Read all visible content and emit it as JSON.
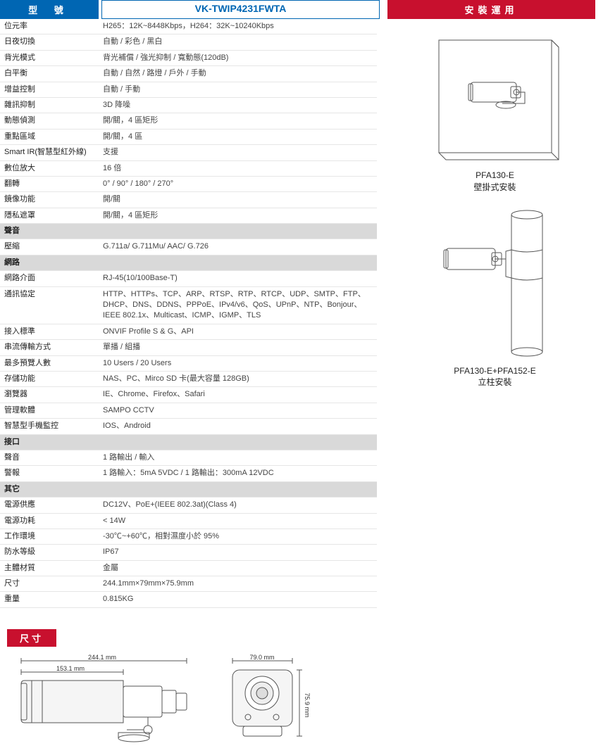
{
  "header": {
    "model_label": "型 號",
    "model_value": "VK-TWIP4231FWTA",
    "install_label": "安裝運用"
  },
  "rows": [
    {
      "type": "kv",
      "k": "位元率",
      "v": "H265：12K~8448Kbps，H264：32K~10240Kbps"
    },
    {
      "type": "kv",
      "k": "日夜切換",
      "v": "自動 / 彩色 / 黑白"
    },
    {
      "type": "kv",
      "k": "背光模式",
      "v": "背光補償 / 強光抑制 / 寬動態(120dB)"
    },
    {
      "type": "kv",
      "k": "白平衡",
      "v": "自動 / 自然 / 路燈 / 戶外 / 手動"
    },
    {
      "type": "kv",
      "k": "增益控制",
      "v": "自動 / 手動"
    },
    {
      "type": "kv",
      "k": "雜訊抑制",
      "v": "3D 降噪"
    },
    {
      "type": "kv",
      "k": "動態偵測",
      "v": "開/關，4 區矩形"
    },
    {
      "type": "kv",
      "k": "重點區域",
      "v": "開/關，4 區"
    },
    {
      "type": "kv",
      "k": "Smart IR(智慧型紅外線)",
      "v": "支援"
    },
    {
      "type": "kv",
      "k": "數位放大",
      "v": "16 倍"
    },
    {
      "type": "kv",
      "k": "翻轉",
      "v": "0° / 90° / 180° / 270°"
    },
    {
      "type": "kv",
      "k": "鏡像功能",
      "v": "開/關"
    },
    {
      "type": "kv",
      "k": "隱私遮罩",
      "v": "開/關，4 區矩形"
    },
    {
      "type": "section",
      "k": "聲音"
    },
    {
      "type": "kv",
      "k": "壓縮",
      "v": "G.711a/ G.711Mu/ AAC/ G.726"
    },
    {
      "type": "section",
      "k": "網路"
    },
    {
      "type": "kv",
      "k": "網路介面",
      "v": "RJ-45(10/100Base-T)"
    },
    {
      "type": "kv",
      "k": "通訊協定",
      "v": "HTTP、HTTPs、TCP、ARP、RTSP、RTP、RTCP、UDP、SMTP、FTP、DHCP、DNS、DDNS、PPPoE、IPv4/v6、QoS、UPnP、NTP、Bonjour、IEEE 802.1x、Multicast、ICMP、IGMP、TLS"
    },
    {
      "type": "kv",
      "k": "接入標準",
      "v": "ONVIF Profile S & G、API"
    },
    {
      "type": "kv",
      "k": "串流傳輸方式",
      "v": "單播 / 組播"
    },
    {
      "type": "kv",
      "k": "最多預覽人數",
      "v": "10 Users / 20 Users"
    },
    {
      "type": "kv",
      "k": "存儲功能",
      "v": "NAS、PC、Mirco SD 卡(最大容量 128GB)"
    },
    {
      "type": "kv",
      "k": "瀏覽器",
      "v": "IE、Chrome、Firefox、Safari"
    },
    {
      "type": "kv",
      "k": "管理軟體",
      "v": "SAMPO CCTV"
    },
    {
      "type": "kv",
      "k": "智慧型手機監控",
      "v": "IOS、Android"
    },
    {
      "type": "section",
      "k": "接口"
    },
    {
      "type": "kv",
      "k": "聲音",
      "v": "1 路輸出 / 輸入"
    },
    {
      "type": "kv",
      "k": "警報",
      "v": "1 路輸入：5mA 5VDC / 1 路輸出：300mA 12VDC"
    },
    {
      "type": "section",
      "k": "其它"
    },
    {
      "type": "kv",
      "k": "電源供應",
      "v": "DC12V、PoE+(IEEE 802.3at)(Class 4)"
    },
    {
      "type": "kv",
      "k": "電源功耗",
      "v": "< 14W"
    },
    {
      "type": "kv",
      "k": "工作環境",
      "v": "-30℃~+60℃，相對濕度小於 95%"
    },
    {
      "type": "kv",
      "k": "防水等級",
      "v": "IP67"
    },
    {
      "type": "kv",
      "k": "主體材質",
      "v": "金屬"
    },
    {
      "type": "kv",
      "k": "尺寸",
      "v": "244.1mm×79mm×75.9mm"
    },
    {
      "type": "kv",
      "k": "重量",
      "v": "0.815KG"
    }
  ],
  "install": {
    "wall": {
      "model": "PFA130-E",
      "desc": "壁掛式安裝"
    },
    "pole": {
      "model": "PFA130-E+PFA152-E",
      "desc": "立柱安裝"
    }
  },
  "dimensions": {
    "label": "尺寸",
    "side": {
      "total": "244.1 mm",
      "partial": "153.1 mm"
    },
    "front": {
      "width": "79.0 mm",
      "height": "75.9 mm"
    }
  },
  "colors": {
    "blue": "#0066b3",
    "red": "#c8102e",
    "section_bg": "#d9d9d9",
    "row_border": "#e6e6e6",
    "stroke": "#555"
  }
}
